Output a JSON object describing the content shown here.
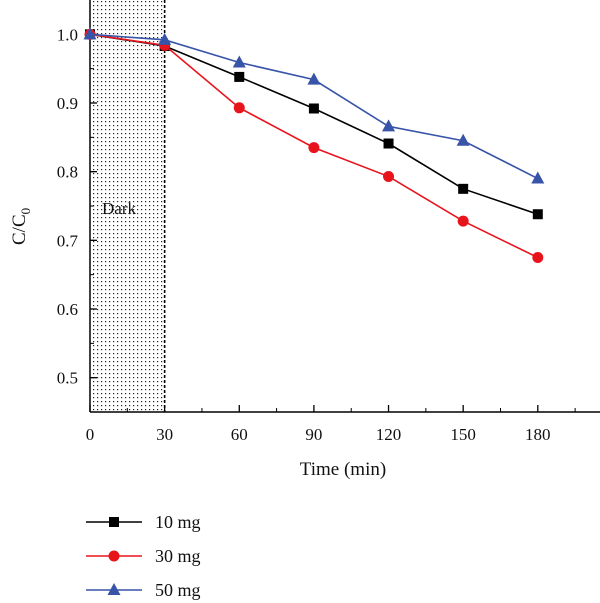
{
  "chart_data": {
    "type": "line",
    "xlabel": "Time (min)",
    "ylabel_main": "C/C",
    "ylabel_sub": "0",
    "xlim": [
      0,
      205
    ],
    "ylim": [
      0.45,
      1.05
    ],
    "xticks": [
      0,
      30,
      60,
      90,
      120,
      150,
      180
    ],
    "yticks": [
      0.5,
      0.6,
      0.7,
      0.8,
      0.9,
      1.0
    ],
    "ytick_labels": [
      "0.5",
      "0.6",
      "0.7",
      "0.8",
      "0.9",
      "1.0"
    ],
    "dark_region": {
      "label": "Dark",
      "x_from": 0,
      "x_to": 30
    },
    "x": [
      0,
      30,
      60,
      90,
      120,
      150,
      180
    ],
    "series": [
      {
        "name": "10 mg",
        "color": "#000000",
        "marker": "square",
        "values": [
          1.0,
          0.983,
          0.938,
          0.892,
          0.841,
          0.775,
          0.738
        ]
      },
      {
        "name": "30 mg",
        "color": "#e8141c",
        "marker": "circle",
        "values": [
          1.0,
          0.984,
          0.893,
          0.835,
          0.793,
          0.728,
          0.675
        ]
      },
      {
        "name": "50 mg",
        "color": "#3854a8",
        "marker": "triangle",
        "values": [
          1.0,
          0.992,
          0.959,
          0.934,
          0.866,
          0.845,
          0.79
        ]
      }
    ],
    "legend_position": "bottom-left",
    "grid": false
  }
}
